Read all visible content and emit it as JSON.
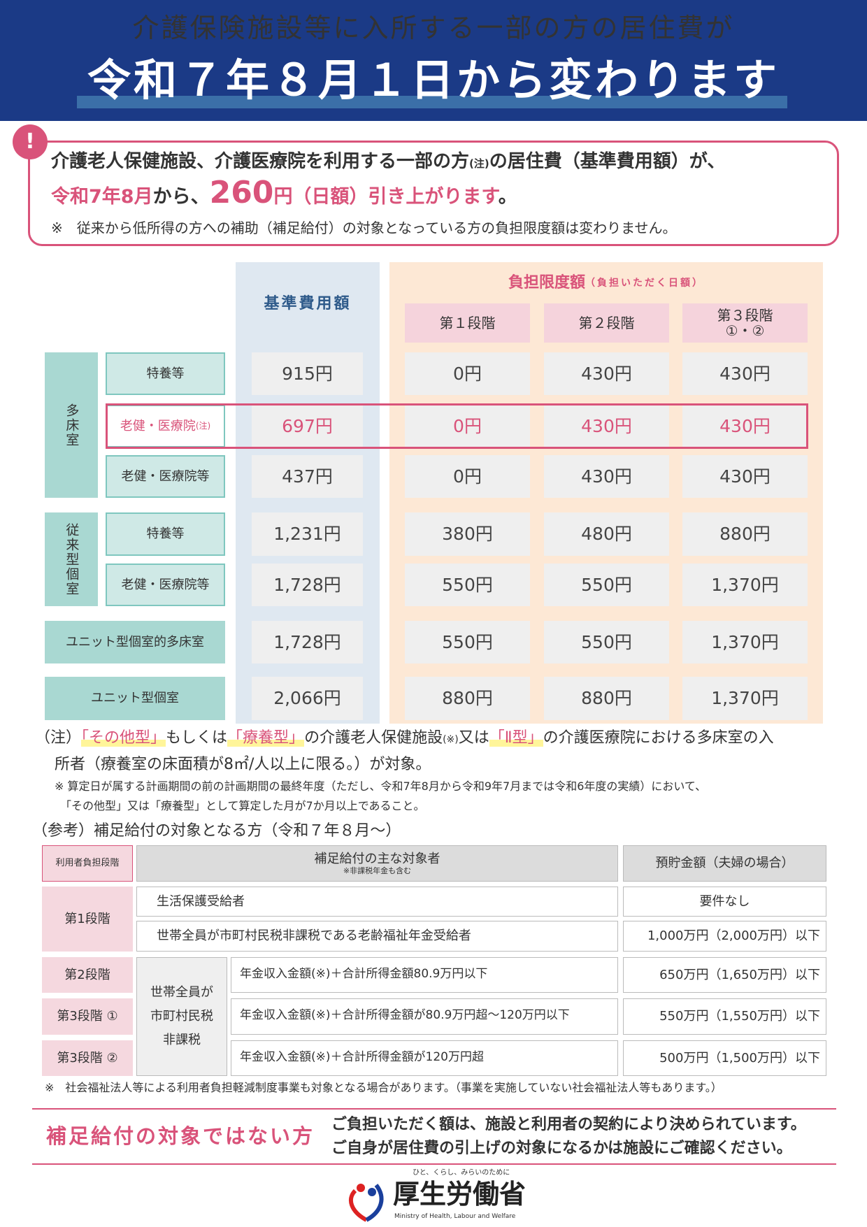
{
  "header": {
    "line1": "介護保険施設等に入所する一部の方の居住費が",
    "line2": "令和７年８月１日から変わります"
  },
  "alert": {
    "icon": "!",
    "line1a": "介護老人保健施設、介護医療院を利用する一部の方",
    "line1note": "(注)",
    "line1b": "の居住費（基準費用額）が、",
    "date": "令和7年8月",
    "kara": "から、",
    "amount": "260",
    "amount_suffix": "円（日額）引き上がります",
    "period": "。",
    "note": "※　従来から低所得の方への補助（補足給付）の対象となっている方の負担限度額は変わりません。"
  },
  "table": {
    "base_header": "基準費用額",
    "burden_header": "負担限度額",
    "burden_sub": "（負担いただく日額）",
    "stages": [
      "第１段階",
      "第２段階",
      "第３段階\n①・②"
    ],
    "groups": [
      "多床室",
      "従来型個室"
    ],
    "rows": [
      {
        "label": "特養等",
        "base": "915円",
        "s1": "0円",
        "s2": "430円",
        "s3": "430円"
      },
      {
        "label": "老健・医療院",
        "note": "(注)",
        "base": "697円",
        "s1": "0円",
        "s2": "430円",
        "s3": "430円"
      },
      {
        "label": "老健・医療院等",
        "base": "437円",
        "s1": "0円",
        "s2": "430円",
        "s3": "430円"
      },
      {
        "label": "特養等",
        "base": "1,231円",
        "s1": "380円",
        "s2": "480円",
        "s3": "880円"
      },
      {
        "label": "老健・医療院等",
        "base": "1,728円",
        "s1": "550円",
        "s2": "550円",
        "s3": "1,370円"
      },
      {
        "label": "ユニット型個室的多床室",
        "base": "1,728円",
        "s1": "550円",
        "s2": "550円",
        "s3": "1,370円"
      },
      {
        "label": "ユニット型個室",
        "base": "2,066円",
        "s1": "880円",
        "s2": "880円",
        "s3": "1,370円"
      }
    ]
  },
  "notes": {
    "n1a": "（注）",
    "q1": "「その他型」",
    "n1b": "もしくは",
    "q2": "「療養型」",
    "n1c": "の介護老人保健施設",
    "n1s": "(※)",
    "n1d": "又は",
    "q3": "「Ⅱ型」",
    "n1e": "の介護医療院における多床室の入",
    "n2": "所者（療養室の床面積が8㎡/人以上に限る。）が対象。",
    "n3": "※ 算定日が属する計画期間の前の計画期間の最終年度（ただし、令和7年8月から令和9年7月までは令和6年度の実績）において、",
    "n4": "「その他型」又は「療養型」として算定した月が7か月以上であること。"
  },
  "ref": {
    "title": "（参考）補足給付の対象となる方（令和７年８月～）",
    "h_stage": "利用者負担段階",
    "h_target": "補足給付の主な対象者",
    "h_target_sub": "※非課税年金も含む",
    "h_savings": "預貯金額（夫婦の場合）",
    "stage1": "第1段階",
    "r1": "生活保護受給者",
    "r1s": "要件なし",
    "r2": "世帯全員が市町村民税非課税である老齢福祉年金受給者",
    "r2s": "1,000万円（2,000万円）以下",
    "common": "世帯全員が\n市町村民税\n非課税",
    "stage2": "第2段階",
    "r3": "年金収入金額(※)＋合計所得金額80.9万円以下",
    "r3s": "650万円（1,650万円）以下",
    "stage3a": "第3段階 ①",
    "r4": "年金収入金額(※)＋合計所得金額が80.9万円超～120万円以下",
    "r4s": "550万円（1,550万円）以下",
    "stage3b": "第3段階 ②",
    "r5": "年金収入金額(※)＋合計所得金額が120万円超",
    "r5s": "500万円（1,500万円）以下",
    "footnote": "※　社会福祉法人等による利用者負担軽減制度事業も対象となる場合があります。（事業を実施していない社会福祉法人等もあります。）"
  },
  "bottom": {
    "title": "補足給付の対象ではない方",
    "l1": "ご負担いただく額は、施設と利用者の契約により決められています。",
    "l2": "ご自身が居住費の引上げの対象になるかは施設にご確認ください。"
  },
  "logo": {
    "tagline": "ひと、くらし、みらいのために",
    "name": "厚生労働省",
    "en": "Ministry of Health, Labour and Welfare"
  }
}
